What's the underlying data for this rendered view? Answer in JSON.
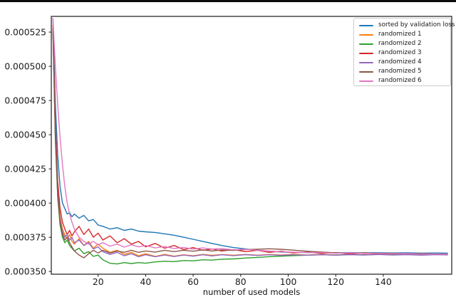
{
  "chart_data": {
    "type": "line",
    "title": "",
    "xlabel": "number of used models",
    "ylabel": "",
    "grid": false,
    "legend_position": "upper right",
    "xlim": [
      0.3,
      168.8
    ],
    "y_value_unit": "loss, values_micro are loss x 1e-6",
    "ylim_micro": [
      348,
      536.5
    ],
    "x_ticks": [
      20,
      40,
      60,
      80,
      100,
      120,
      140
    ],
    "x_tick_labels": [
      "20",
      "40",
      "60",
      "80",
      "100",
      "120",
      "140"
    ],
    "y_ticks_micro": [
      350,
      375,
      400,
      425,
      450,
      475,
      500,
      525
    ],
    "y_tick_labels": [
      "0.000350",
      "0.000375",
      "0.000400",
      "0.000425",
      "0.000450",
      "0.000475",
      "0.000500",
      "0.000525"
    ],
    "x": [
      1,
      2,
      3,
      4,
      5,
      6,
      7,
      8,
      9,
      10,
      12,
      14,
      16,
      18,
      20,
      22,
      25,
      28,
      31,
      34,
      37,
      40,
      44,
      48,
      52,
      56,
      60,
      64,
      68,
      72,
      77,
      82,
      87,
      92,
      97,
      102,
      108,
      114,
      120,
      126,
      132,
      138,
      144,
      150,
      156,
      162,
      167
    ],
    "series": [
      {
        "name": "sorted by validation loss",
        "color": "#1f77b4",
        "values_micro": [
          535,
          472,
          435,
          412,
          400,
          396,
          392,
          393,
          390,
          392,
          389,
          391,
          387,
          388,
          384,
          383,
          381,
          382,
          380,
          381,
          379.5,
          379,
          378.5,
          377.5,
          376.5,
          375,
          373.5,
          372,
          370.5,
          369,
          367.5,
          366.5,
          365.5,
          364.8,
          364.2,
          364,
          363.8,
          363.9,
          363.7,
          363.8,
          363.6,
          363.7,
          363.5,
          363.6,
          363.4,
          363.5,
          363.4
        ]
      },
      {
        "name": "randomized 1",
        "color": "#ff7f0e",
        "values_micro": [
          528,
          452,
          410,
          390,
          381,
          377,
          374,
          377,
          372,
          370,
          374,
          369,
          372,
          367,
          370,
          367,
          364,
          365.5,
          362.5,
          364,
          361.5,
          363,
          361,
          362.5,
          361.2,
          362.2,
          361.5,
          362.5,
          361.8,
          362.3,
          361.9,
          362.4,
          361.9,
          362.4,
          362,
          362.4,
          362,
          362.5,
          362.1,
          362.5,
          362.2,
          362.6,
          362.2,
          362.6,
          362.1,
          362.5,
          362.2
        ]
      },
      {
        "name": "randomized 2",
        "color": "#2ca02c",
        "values_micro": [
          525,
          446,
          404,
          384,
          375,
          371,
          373,
          369,
          367,
          365,
          367,
          363,
          364.5,
          361,
          362,
          358.5,
          356,
          355.5,
          356.5,
          355.8,
          356.5,
          356,
          357,
          357.5,
          357.2,
          358,
          357.8,
          358.5,
          358.3,
          359,
          359.2,
          359.8,
          360.3,
          360.8,
          361.2,
          361.6,
          361.9,
          362.2,
          362,
          362.4,
          362.1,
          362.5,
          362.2,
          362.6,
          362.3,
          362.5,
          362.4
        ]
      },
      {
        "name": "randomized 3",
        "color": "#d62728",
        "values_micro": [
          530,
          458,
          416,
          396,
          386,
          381,
          377,
          380,
          376,
          379,
          383,
          377,
          381,
          375,
          378,
          373,
          376,
          371,
          374,
          370,
          372,
          368,
          370.5,
          367,
          369,
          366,
          367.5,
          365.5,
          366.5,
          365,
          366,
          364.5,
          365.5,
          364,
          364.8,
          363.6,
          364.2,
          363.2,
          363.8,
          362.8,
          363.6,
          362.7,
          363.2,
          362.6,
          363,
          362.5,
          362.6
        ]
      },
      {
        "name": "randomized 4",
        "color": "#9467bd",
        "values_micro": [
          528,
          450,
          408,
          388,
          379,
          375,
          377,
          373,
          375,
          371,
          373,
          369,
          371,
          366.5,
          368,
          364.5,
          362.5,
          364,
          361.5,
          363,
          360.8,
          362.2,
          360.8,
          362,
          360.9,
          362,
          361.2,
          362.2,
          361.4,
          362.2,
          361.6,
          362.3,
          361.7,
          362.2,
          361.8,
          362.2,
          361.9,
          362.3,
          361.9,
          362.3,
          362,
          362.4,
          362,
          362.3,
          361.9,
          362.3,
          362.1
        ]
      },
      {
        "name": "randomized 5",
        "color": "#8c564b",
        "values_micro": [
          527,
          448,
          406,
          386,
          377,
          373,
          375,
          371,
          368,
          365,
          362,
          360,
          363,
          365.5,
          363.5,
          365.5,
          363.5,
          365,
          364,
          365.5,
          364,
          365,
          364.2,
          365.5,
          364.5,
          365.5,
          364.8,
          365.8,
          365,
          365.8,
          365.4,
          366,
          366.2,
          366.6,
          366.2,
          365.6,
          364.8,
          364.2,
          363.6,
          363.3,
          363.5,
          363.1,
          363.3,
          362.8,
          363.1,
          362.7,
          362.8
        ]
      },
      {
        "name": "randomized 6",
        "color": "#e377c2",
        "values_micro": [
          535,
          500,
          472,
          448,
          428,
          412,
          400,
          392,
          386,
          381,
          375,
          372,
          370,
          372,
          369.5,
          371,
          368.5,
          370,
          367.8,
          369.5,
          368,
          369,
          367.2,
          368.2,
          366.8,
          367.6,
          366.4,
          367.2,
          366.4,
          366.8,
          365.8,
          366.2,
          365.4,
          364.9,
          364.4,
          364.1,
          363.9,
          363.7,
          363.3,
          363.6,
          363.1,
          363.3,
          362.9,
          363.1,
          362.7,
          362.9,
          362.7
        ]
      }
    ]
  }
}
